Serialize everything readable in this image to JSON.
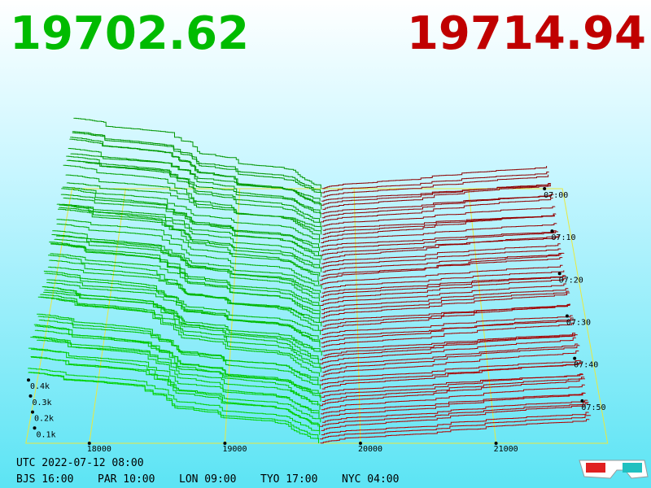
{
  "header": {
    "bid": "19702.62",
    "ask": "19714.94"
  },
  "price_axis": {
    "ticks": [
      18000,
      19000,
      20000,
      21000
    ]
  },
  "depth_axis": {
    "ticks": [
      {
        "value": 100,
        "label": "0.1k"
      },
      {
        "value": 200,
        "label": "0.2k"
      },
      {
        "value": 300,
        "label": "0.3k"
      },
      {
        "value": 400,
        "label": "0.4k"
      }
    ]
  },
  "time_axis": {
    "ticks": [
      "07:00",
      "07:10",
      "07:20",
      "07:30",
      "07:40",
      "07:50"
    ]
  },
  "footer": {
    "utc": "UTC 2022-07-12 08:00",
    "clocks": [
      "BJS 16:00",
      "PAR 10:00",
      "LON 09:00",
      "TYO 17:00",
      "NYC 04:00"
    ]
  }
}
